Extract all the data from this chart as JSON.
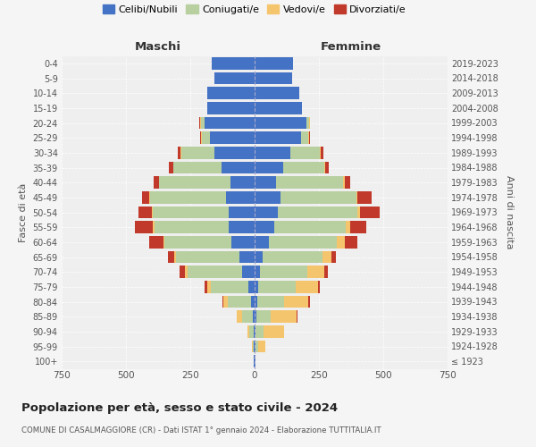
{
  "age_groups": [
    "100+",
    "95-99",
    "90-94",
    "85-89",
    "80-84",
    "75-79",
    "70-74",
    "65-69",
    "60-64",
    "55-59",
    "50-54",
    "45-49",
    "40-44",
    "35-39",
    "30-34",
    "25-29",
    "20-24",
    "15-19",
    "10-14",
    "5-9",
    "0-4"
  ],
  "birth_years": [
    "≤ 1923",
    "1924-1928",
    "1929-1933",
    "1934-1938",
    "1939-1943",
    "1944-1948",
    "1949-1953",
    "1954-1958",
    "1959-1963",
    "1964-1968",
    "1969-1973",
    "1974-1978",
    "1979-1983",
    "1984-1988",
    "1989-1993",
    "1994-1998",
    "1999-2003",
    "2004-2008",
    "2009-2013",
    "2014-2018",
    "2019-2023"
  ],
  "male": {
    "celibi": [
      2,
      3,
      5,
      8,
      15,
      25,
      50,
      60,
      90,
      100,
      100,
      110,
      95,
      130,
      155,
      175,
      195,
      185,
      185,
      155,
      165
    ],
    "coniugati": [
      1,
      5,
      15,
      40,
      90,
      145,
      210,
      245,
      260,
      290,
      295,
      295,
      275,
      185,
      130,
      30,
      15,
      0,
      0,
      0,
      0
    ],
    "vedovi": [
      0,
      2,
      8,
      20,
      15,
      15,
      10,
      8,
      5,
      5,
      3,
      3,
      2,
      2,
      2,
      2,
      3,
      0,
      0,
      0,
      0
    ],
    "divorziati": [
      0,
      0,
      0,
      0,
      5,
      10,
      20,
      25,
      55,
      70,
      55,
      30,
      20,
      15,
      10,
      5,
      2,
      0,
      0,
      0,
      0
    ]
  },
  "female": {
    "nubili": [
      2,
      3,
      5,
      8,
      10,
      15,
      20,
      30,
      55,
      75,
      90,
      100,
      85,
      110,
      140,
      180,
      200,
      185,
      175,
      145,
      150
    ],
    "coniugate": [
      1,
      10,
      30,
      55,
      105,
      145,
      185,
      235,
      265,
      280,
      310,
      295,
      260,
      160,
      115,
      30,
      12,
      0,
      0,
      0,
      0
    ],
    "vedove": [
      1,
      30,
      80,
      100,
      95,
      85,
      65,
      35,
      30,
      15,
      10,
      5,
      5,
      3,
      2,
      2,
      2,
      0,
      0,
      0,
      0
    ],
    "divorziate": [
      0,
      0,
      0,
      2,
      5,
      10,
      15,
      15,
      50,
      65,
      75,
      55,
      20,
      15,
      10,
      5,
      2,
      0,
      0,
      0,
      0
    ]
  },
  "colors": {
    "celibi_nubili": "#4472c4",
    "coniugati": "#b8cfa0",
    "vedovi": "#f5c56e",
    "divorziati": "#c0392b"
  },
  "xlim": 750,
  "title": "Popolazione per età, sesso e stato civile - 2024",
  "subtitle": "COMUNE DI CASALMAGGIORE (CR) - Dati ISTAT 1° gennaio 2024 - Elaborazione TUTTITALIA.IT",
  "ylabel_left": "Fasce di età",
  "ylabel_right": "Anni di nascita",
  "xlabel_male": "Maschi",
  "xlabel_female": "Femmine",
  "bg_color": "#f5f5f5",
  "plot_bg": "#efefef",
  "legend_labels": [
    "Celibi/Nubili",
    "Coniugati/e",
    "Vedovi/e",
    "Divorziati/e"
  ]
}
